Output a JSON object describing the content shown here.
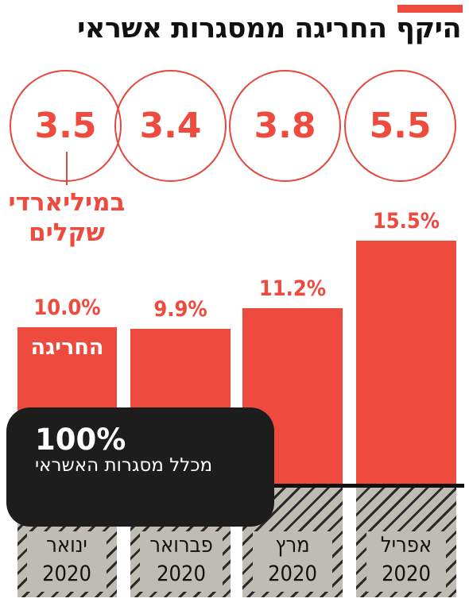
{
  "title": "היקף החריגה ממסגרות אשראי",
  "unit_label": "במיליארדי שקלים",
  "bar_inner_label": "החריגה",
  "overlay": {
    "percent": "100%",
    "label": "מכלל מסגרות האשראי"
  },
  "colors": {
    "accent": "#ee4a3e",
    "dark": "#1d1d1d",
    "ground": "#bfbdb3"
  },
  "chart_data": {
    "type": "bar",
    "title": "היקף החריגה ממסגרות אשראי",
    "categories": [
      "ינואר 2020",
      "פברואר 2020",
      "מרץ 2020",
      "אפריל 2020"
    ],
    "series": [
      {
        "values": [
          10.0,
          9.9,
          11.2,
          15.5
        ],
        "labels": [
          "10.0%",
          "9.9%",
          "11.2%",
          "15.5%"
        ]
      },
      {
        "name": "במיליארדי שקלים",
        "values": [
          3.5,
          3.4,
          3.8,
          5.5
        ],
        "labels": [
          "3.5",
          "3.4",
          "3.8",
          "5.5"
        ]
      }
    ],
    "months": [
      {
        "month": "ינואר",
        "year": "2020"
      },
      {
        "month": "פברואר",
        "year": "2020"
      },
      {
        "month": "מרץ",
        "year": "2020"
      },
      {
        "month": "אפריל",
        "year": "2020"
      }
    ],
    "ylim": [
      0,
      15.5
    ]
  }
}
